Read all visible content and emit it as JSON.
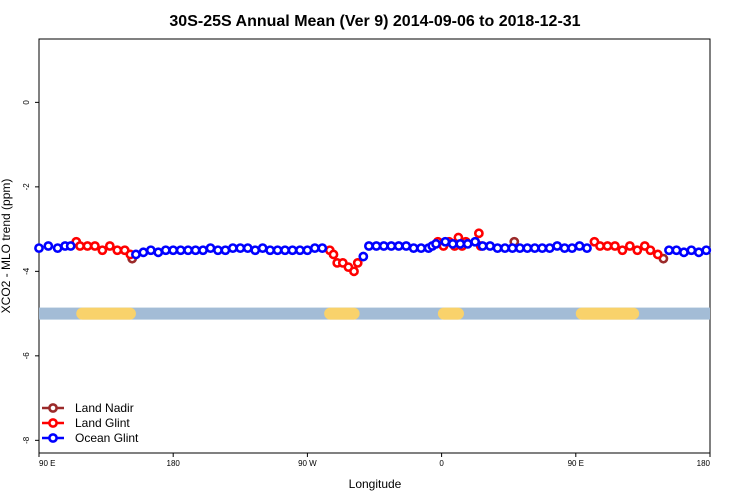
{
  "chart_data": {
    "type": "scatter",
    "title": "30S-25S Annual Mean (Ver 9)   2014-09-06 to 2018-12-31",
    "xlabel": "Longitude",
    "ylabel": "XCO2 - MLO trend (ppm)",
    "xlim": [
      90,
      450
    ],
    "ylim": [
      -8.3,
      1.5
    ],
    "x_ticks": [
      {
        "value": 90,
        "label": "90 E"
      },
      {
        "value": 162,
        "label": "180"
      },
      {
        "value": 234,
        "label": "90 W"
      },
      {
        "value": 306,
        "label": "0"
      },
      {
        "value": 378,
        "label": "90 E"
      },
      {
        "value": 450,
        "label": "180"
      }
    ],
    "y_ticks": [
      {
        "value": 0,
        "label": "0"
      },
      {
        "value": -2,
        "label": "-2"
      },
      {
        "value": -4,
        "label": "-4"
      },
      {
        "value": -6,
        "label": "-6"
      },
      {
        "value": -8,
        "label": "-8"
      }
    ],
    "grid": false,
    "legend_position": "bottom-left",
    "land_bar": {
      "y": -5.0,
      "ocean_color": "#a3bcd6",
      "land_color": "#f9d26b",
      "land_segments": [
        [
          110,
          142
        ],
        [
          243,
          262
        ],
        [
          304,
          318
        ],
        [
          378,
          412
        ]
      ]
    },
    "series": [
      {
        "name": "Land Nadir",
        "color": "#9b2a2a",
        "points": [
          [
            140,
            -3.7
          ],
          [
            345,
            -3.3
          ],
          [
            425,
            -3.7
          ]
        ]
      },
      {
        "name": "Land Glint",
        "color": "#ff0000",
        "points": [
          [
            110,
            -3.3
          ],
          [
            112,
            -3.4
          ],
          [
            116,
            -3.4
          ],
          [
            120,
            -3.4
          ],
          [
            124,
            -3.5
          ],
          [
            128,
            -3.4
          ],
          [
            132,
            -3.5
          ],
          [
            136,
            -3.5
          ],
          [
            139,
            -3.6
          ],
          [
            246,
            -3.5
          ],
          [
            248,
            -3.6
          ],
          [
            250,
            -3.8
          ],
          [
            253,
            -3.8
          ],
          [
            256,
            -3.9
          ],
          [
            259,
            -4.0
          ],
          [
            261,
            -3.8
          ],
          [
            304,
            -3.3
          ],
          [
            307,
            -3.4
          ],
          [
            310,
            -3.3
          ],
          [
            313,
            -3.4
          ],
          [
            315,
            -3.2
          ],
          [
            317,
            -3.4
          ],
          [
            319,
            -3.3
          ],
          [
            326,
            -3.1
          ],
          [
            327,
            -3.4
          ],
          [
            388,
            -3.3
          ],
          [
            391,
            -3.4
          ],
          [
            395,
            -3.4
          ],
          [
            399,
            -3.4
          ],
          [
            403,
            -3.5
          ],
          [
            407,
            -3.4
          ],
          [
            411,
            -3.5
          ],
          [
            415,
            -3.4
          ],
          [
            418,
            -3.5
          ],
          [
            422,
            -3.6
          ]
        ]
      },
      {
        "name": "Ocean Glint",
        "color": "#0000ff",
        "points": [
          [
            90,
            -3.45
          ],
          [
            95,
            -3.4
          ],
          [
            100,
            -3.45
          ],
          [
            104,
            -3.4
          ],
          [
            107,
            -3.4
          ],
          [
            142,
            -3.6
          ],
          [
            146,
            -3.55
          ],
          [
            150,
            -3.5
          ],
          [
            154,
            -3.55
          ],
          [
            158,
            -3.5
          ],
          [
            162,
            -3.5
          ],
          [
            166,
            -3.5
          ],
          [
            170,
            -3.5
          ],
          [
            174,
            -3.5
          ],
          [
            178,
            -3.5
          ],
          [
            182,
            -3.45
          ],
          [
            186,
            -3.5
          ],
          [
            190,
            -3.5
          ],
          [
            194,
            -3.45
          ],
          [
            198,
            -3.45
          ],
          [
            202,
            -3.45
          ],
          [
            206,
            -3.5
          ],
          [
            210,
            -3.45
          ],
          [
            214,
            -3.5
          ],
          [
            218,
            -3.5
          ],
          [
            222,
            -3.5
          ],
          [
            226,
            -3.5
          ],
          [
            230,
            -3.5
          ],
          [
            234,
            -3.5
          ],
          [
            238,
            -3.45
          ],
          [
            242,
            -3.45
          ],
          [
            264,
            -3.65
          ],
          [
            267,
            -3.4
          ],
          [
            271,
            -3.4
          ],
          [
            275,
            -3.4
          ],
          [
            279,
            -3.4
          ],
          [
            283,
            -3.4
          ],
          [
            287,
            -3.4
          ],
          [
            291,
            -3.45
          ],
          [
            295,
            -3.45
          ],
          [
            299,
            -3.45
          ],
          [
            301,
            -3.4
          ],
          [
            303,
            -3.35
          ],
          [
            308,
            -3.3
          ],
          [
            312,
            -3.35
          ],
          [
            316,
            -3.35
          ],
          [
            320,
            -3.35
          ],
          [
            324,
            -3.3
          ],
          [
            328,
            -3.4
          ],
          [
            332,
            -3.4
          ],
          [
            336,
            -3.45
          ],
          [
            340,
            -3.45
          ],
          [
            344,
            -3.45
          ],
          [
            348,
            -3.45
          ],
          [
            352,
            -3.45
          ],
          [
            356,
            -3.45
          ],
          [
            360,
            -3.45
          ],
          [
            364,
            -3.45
          ],
          [
            368,
            -3.4
          ],
          [
            372,
            -3.45
          ],
          [
            376,
            -3.45
          ],
          [
            380,
            -3.4
          ],
          [
            384,
            -3.45
          ],
          [
            428,
            -3.5
          ],
          [
            432,
            -3.5
          ],
          [
            436,
            -3.55
          ],
          [
            440,
            -3.5
          ],
          [
            444,
            -3.55
          ],
          [
            448,
            -3.5
          ]
        ]
      }
    ]
  }
}
